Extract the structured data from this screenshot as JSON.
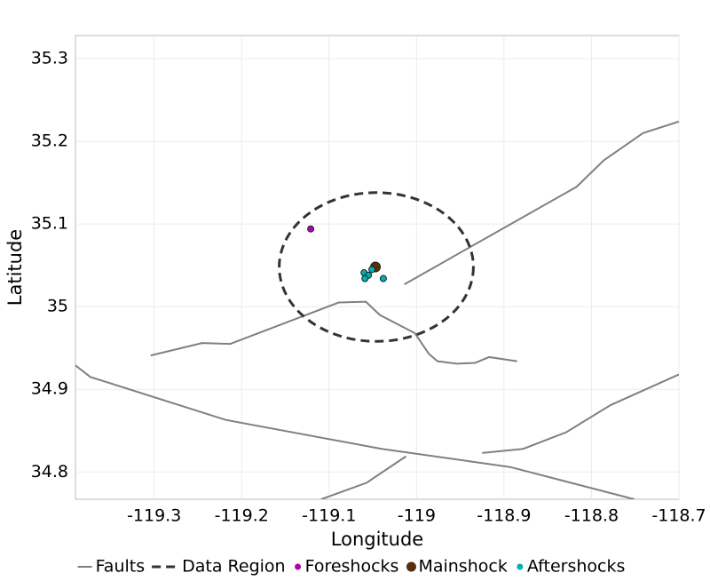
{
  "chart_data": {
    "type": "scatter",
    "xlabel": "Longitude",
    "ylabel": "Latitude",
    "xlim": [
      -119.39,
      -118.7
    ],
    "ylim": [
      34.767,
      35.328
    ],
    "xticks": [
      -119.3,
      -119.2,
      -119.1,
      -119,
      -118.9,
      -118.8,
      -118.7
    ],
    "yticks": [
      34.8,
      34.9,
      35,
      35.1,
      35.2,
      35.3
    ],
    "grid": true,
    "legend": "bottom",
    "series": [
      {
        "name": "Faults",
        "type": "line",
        "color": "#808080",
        "x": [
          -119.014,
          -118.817,
          -118.786,
          -118.741,
          -118.7,
          null,
          -119.304,
          -119.245,
          -119.213,
          -119.089,
          -119.058,
          -119.042,
          -119.002,
          -118.986,
          -118.976,
          -118.954,
          -118.933,
          -118.917,
          -118.885,
          null,
          -119.39,
          -119.373,
          -119.218,
          -119.04,
          -118.893,
          -118.751,
          null,
          -118.925,
          -118.878,
          -118.829,
          -118.778,
          -118.7,
          null,
          -119.109,
          -119.057,
          -119.012
        ],
        "y": [
          35.027,
          35.145,
          35.177,
          35.21,
          35.224,
          null,
          34.941,
          34.956,
          34.955,
          35.005,
          35.006,
          34.99,
          34.968,
          34.943,
          34.934,
          34.931,
          34.932,
          34.939,
          34.934,
          null,
          34.929,
          34.915,
          34.863,
          34.828,
          34.806,
          34.767,
          null,
          34.823,
          34.828,
          34.848,
          34.881,
          34.918,
          null,
          34.767,
          34.787,
          34.819
        ]
      },
      {
        "name": "Data Region",
        "type": "ellipse",
        "color": "#333333",
        "center": [
          -119.046,
          35.048
        ],
        "radii": [
          0.111,
          0.09
        ]
      },
      {
        "name": "Foreshocks",
        "type": "points",
        "color": "#b000b0",
        "size": 3.5,
        "x": [
          -119.121
        ],
        "y": [
          35.094
        ]
      },
      {
        "name": "Mainshock",
        "type": "points",
        "color": "#5a2d0c",
        "size": 5.5,
        "x": [
          -119.047
        ],
        "y": [
          35.048
        ]
      },
      {
        "name": "Aftershocks",
        "type": "points",
        "color": "#00b0b0",
        "size": 3.5,
        "x": [
          -119.06,
          -119.055,
          -119.059,
          -119.038,
          -119.051
        ],
        "y": [
          35.041,
          35.038,
          35.034,
          35.034,
          35.045
        ]
      }
    ]
  }
}
